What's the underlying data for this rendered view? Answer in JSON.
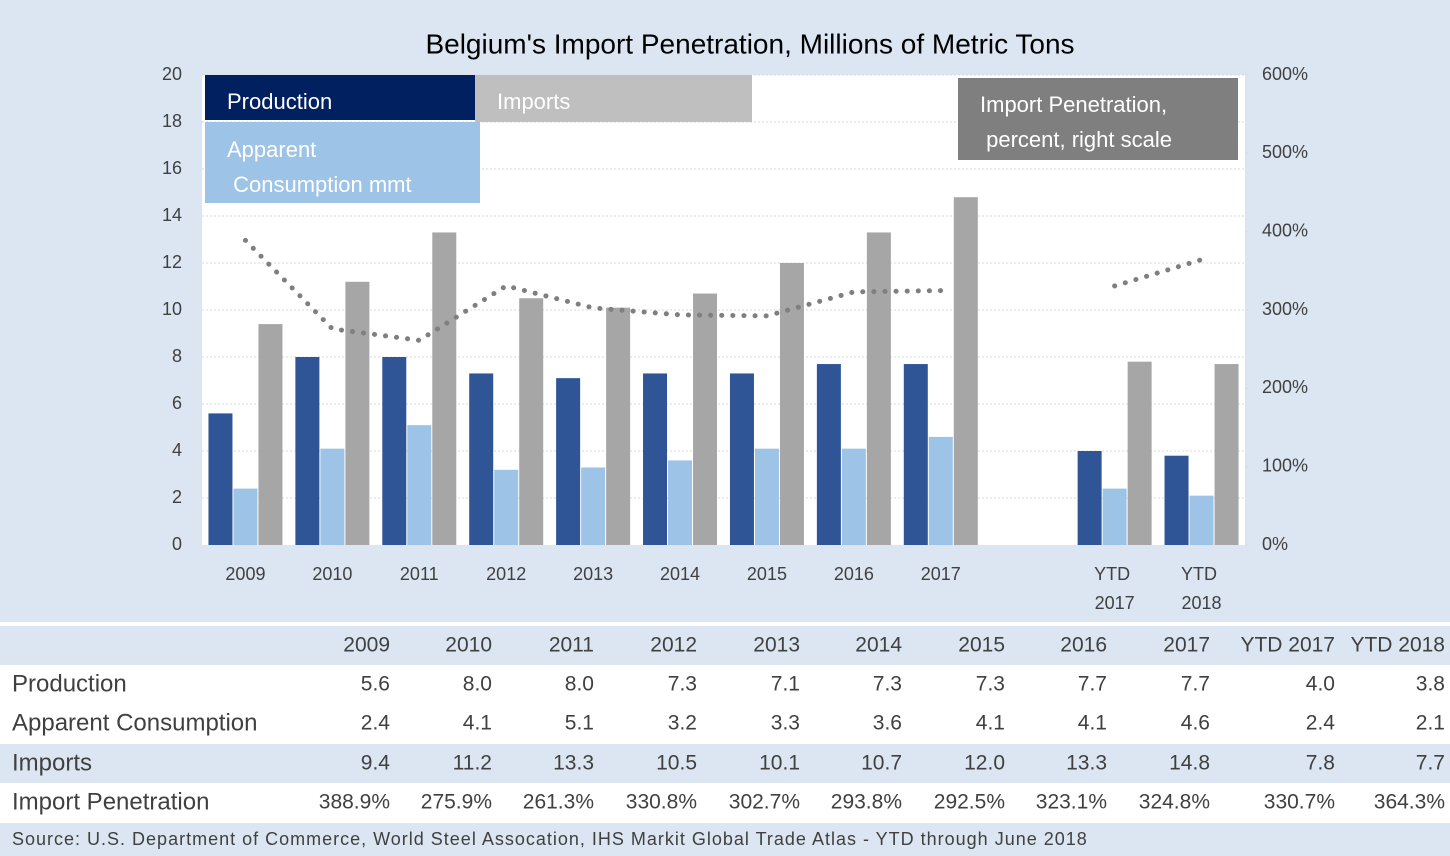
{
  "chart_data": {
    "type": "bar",
    "title": "Belgium's Import Penetration, Millions of Metric Tons",
    "categories": [
      "2009",
      "2010",
      "2011",
      "2012",
      "2013",
      "2014",
      "2015",
      "2016",
      "2017",
      null,
      "YTD 2017",
      "YTD 2018"
    ],
    "series": [
      {
        "name": "Production",
        "color": "#2f5597",
        "values": [
          5.6,
          8.0,
          8.0,
          7.3,
          7.1,
          7.3,
          7.3,
          7.7,
          7.7,
          null,
          4.0,
          3.8
        ]
      },
      {
        "name": "Apparent Consumption mmt",
        "color": "#9dc3e6",
        "values": [
          2.4,
          4.1,
          5.1,
          3.2,
          3.3,
          3.6,
          4.1,
          4.1,
          4.6,
          null,
          2.4,
          2.1
        ]
      },
      {
        "name": "Imports",
        "color": "#a6a6a6",
        "values": [
          9.4,
          11.2,
          13.3,
          10.5,
          10.1,
          10.7,
          12.0,
          13.3,
          14.8,
          null,
          7.8,
          7.7
        ]
      },
      {
        "name": "Import Penetration, percent, right scale",
        "color": "#7f7f7f",
        "type": "line",
        "axis": "y2",
        "values": [
          388.9,
          275.9,
          261.3,
          330.8,
          302.7,
          293.8,
          292.5,
          323.1,
          324.8,
          null,
          330.7,
          364.3
        ]
      }
    ],
    "ylim": [
      0,
      20
    ],
    "yticks": [
      0,
      2,
      4,
      6,
      8,
      10,
      12,
      14,
      16,
      18,
      20
    ],
    "y2lim": [
      0,
      600
    ],
    "y2ticks": [
      {
        "value": 0,
        "label": "0%"
      },
      {
        "value": 100,
        "label": "100%"
      },
      {
        "value": 200,
        "label": "200%"
      },
      {
        "value": 300,
        "label": "300%"
      },
      {
        "value": 400,
        "label": "400%"
      },
      {
        "value": 500,
        "label": "500%"
      },
      {
        "value": 600,
        "label": "600%"
      }
    ],
    "grid": true
  },
  "table": {
    "columns": [
      "2009",
      "2010",
      "2011",
      "2012",
      "2013",
      "2014",
      "2015",
      "2016",
      "2017",
      "YTD 2017",
      "YTD 2018"
    ],
    "rows": [
      {
        "label": "Production",
        "cells": [
          "5.6",
          "8.0",
          "8.0",
          "7.3",
          "7.1",
          "7.3",
          "7.3",
          "7.7",
          "7.7",
          "4.0",
          "3.8"
        ]
      },
      {
        "label": "Apparent Consumption",
        "cells": [
          "2.4",
          "4.1",
          "5.1",
          "3.2",
          "3.3",
          "3.6",
          "4.1",
          "4.1",
          "4.6",
          "2.4",
          "2.1"
        ]
      },
      {
        "label": "Imports",
        "cells": [
          "9.4",
          "11.2",
          "13.3",
          "10.5",
          "10.1",
          "10.7",
          "12.0",
          "13.3",
          "14.8",
          "7.8",
          "7.7"
        ]
      },
      {
        "label": "Import Penetration",
        "cells": [
          "388.9%",
          "275.9%",
          "261.3%",
          "330.8%",
          "302.7%",
          "293.8%",
          "292.5%",
          "323.1%",
          "324.8%",
          "330.7%",
          "364.3%"
        ]
      }
    ],
    "source": "Source: U.S. Department of Commerce, World Steel Assocation, IHS Markit Global Trade Atlas - YTD through June 2018"
  }
}
